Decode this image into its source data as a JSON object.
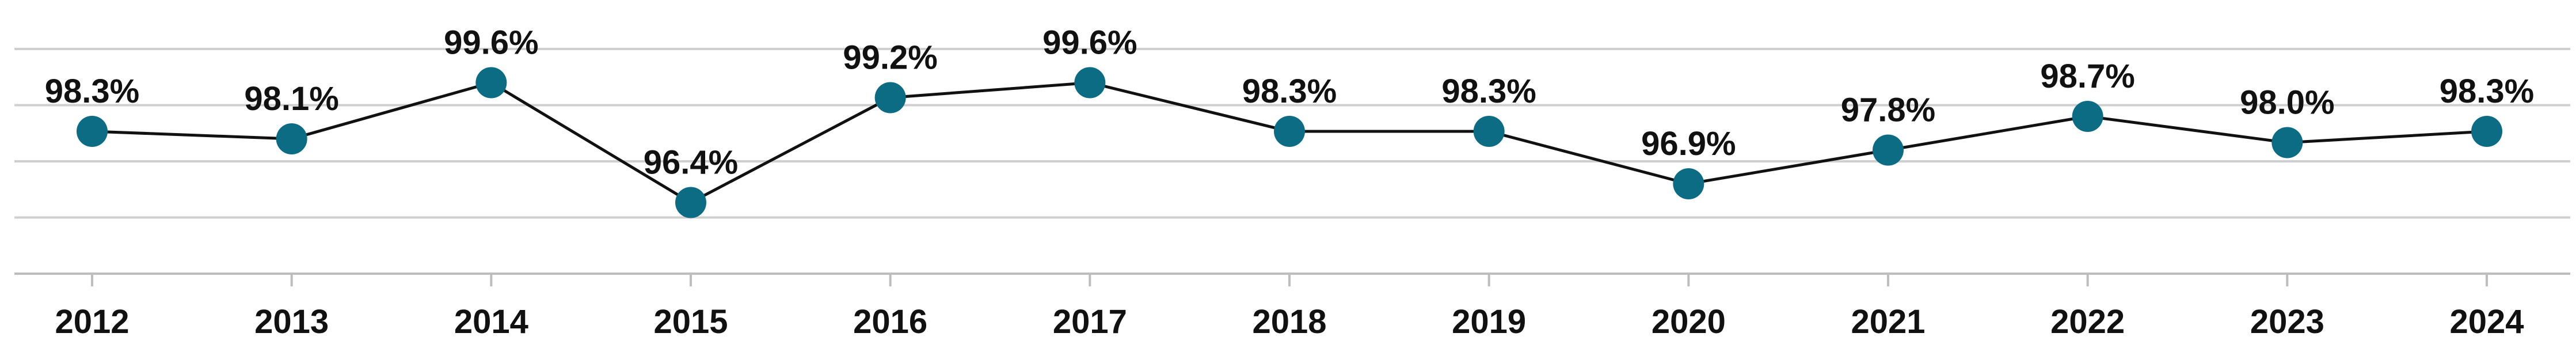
{
  "chart_data": {
    "type": "line",
    "categories": [
      "2012",
      "2013",
      "2014",
      "2015",
      "2016",
      "2017",
      "2018",
      "2019",
      "2020",
      "2021",
      "2022",
      "2023",
      "2024"
    ],
    "values": [
      98.3,
      98.1,
      99.6,
      96.4,
      99.2,
      99.6,
      98.3,
      98.3,
      96.9,
      97.8,
      98.7,
      98.0,
      98.3
    ],
    "data_labels": [
      "98.3%",
      "98.1%",
      "99.6%",
      "96.4%",
      "99.2%",
      "99.6%",
      "98.3%",
      "98.3%",
      "96.9%",
      "97.8%",
      "98.7%",
      "98.0%",
      "98.3%"
    ],
    "title": "",
    "xlabel": "",
    "ylabel": "",
    "ylim": [
      94.5,
      100.5
    ],
    "yticks": [
      94.5,
      96.0,
      97.5,
      99.0,
      100.5
    ],
    "grid": true,
    "legend": "none",
    "colors": {
      "marker": "#0b6c84",
      "line": "#111111",
      "grid": "#cfcfcf"
    }
  }
}
